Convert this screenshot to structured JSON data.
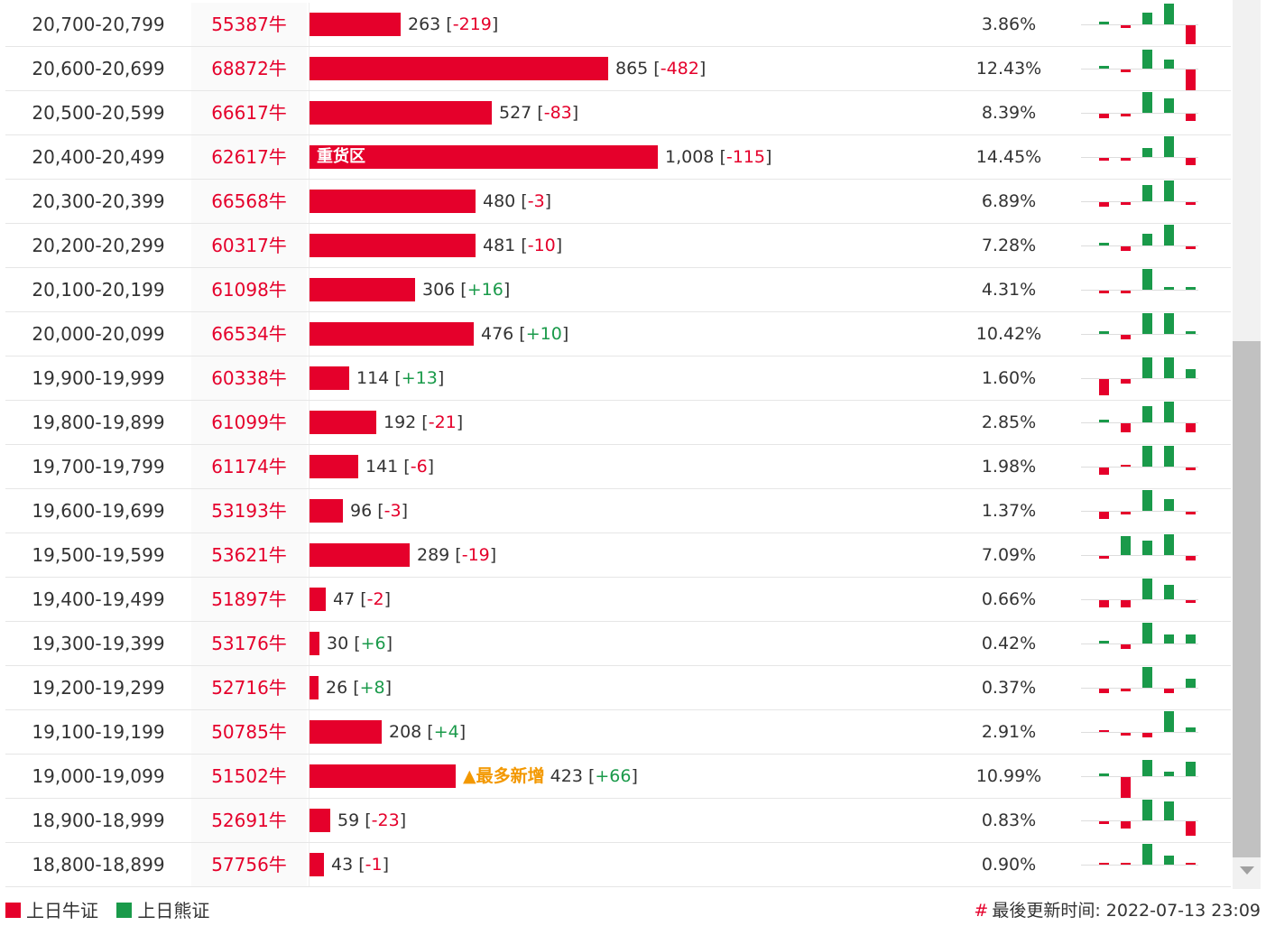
{
  "rows": [
    {
      "range": "20,700-20,799",
      "code": "55387牛",
      "count": "263",
      "count_num": 263,
      "change": "-219",
      "pct": "3.86%",
      "spark": [
        {
          "v": 1,
          "c": "green"
        },
        {
          "v": -1,
          "c": "red"
        },
        {
          "v": 5,
          "c": "green"
        },
        {
          "v": 9,
          "c": "green"
        },
        {
          "v": -8,
          "c": "red"
        }
      ]
    },
    {
      "range": "20,600-20,699",
      "code": "68872牛",
      "count": "865",
      "count_num": 865,
      "change": "-482",
      "pct": "12.43%",
      "spark": [
        {
          "v": 1,
          "c": "green"
        },
        {
          "v": -1,
          "c": "red"
        },
        {
          "v": 8,
          "c": "green"
        },
        {
          "v": 4,
          "c": "green"
        },
        {
          "v": -9,
          "c": "red"
        }
      ]
    },
    {
      "range": "20,500-20,599",
      "code": "66617牛",
      "count": "527",
      "count_num": 527,
      "change": "-83",
      "pct": "8.39%",
      "spark": [
        {
          "v": -2,
          "c": "red"
        },
        {
          "v": -1,
          "c": "red"
        },
        {
          "v": 9,
          "c": "green"
        },
        {
          "v": 6,
          "c": "green"
        },
        {
          "v": -3,
          "c": "red"
        }
      ]
    },
    {
      "range": "20,400-20,499",
      "code": "62617牛",
      "count": "1,008",
      "count_num": 1008,
      "change": "-115",
      "pct": "14.45%",
      "label": "重货区",
      "spark": [
        {
          "v": -1,
          "c": "red"
        },
        {
          "v": -1,
          "c": "red"
        },
        {
          "v": 4,
          "c": "green"
        },
        {
          "v": 9,
          "c": "green"
        },
        {
          "v": -3,
          "c": "red"
        }
      ]
    },
    {
      "range": "20,300-20,399",
      "code": "66568牛",
      "count": "480",
      "count_num": 480,
      "change": "-3",
      "pct": "6.89%",
      "spark": [
        {
          "v": -2,
          "c": "red"
        },
        {
          "v": -1,
          "c": "red"
        },
        {
          "v": 7,
          "c": "green"
        },
        {
          "v": 9,
          "c": "green"
        },
        {
          "v": -1,
          "c": "red"
        }
      ]
    },
    {
      "range": "20,200-20,299",
      "code": "60317牛",
      "count": "481",
      "count_num": 481,
      "change": "-10",
      "pct": "7.28%",
      "spark": [
        {
          "v": 1,
          "c": "green"
        },
        {
          "v": -2,
          "c": "red"
        },
        {
          "v": 5,
          "c": "green"
        },
        {
          "v": 9,
          "c": "green"
        },
        {
          "v": -1,
          "c": "red"
        }
      ]
    },
    {
      "range": "20,100-20,199",
      "code": "61098牛",
      "count": "306",
      "count_num": 306,
      "change": "+16",
      "pct": "4.31%",
      "spark": [
        {
          "v": -1,
          "c": "red"
        },
        {
          "v": -1,
          "c": "red"
        },
        {
          "v": 9,
          "c": "green"
        },
        {
          "v": 1,
          "c": "green"
        },
        {
          "v": 1,
          "c": "green"
        }
      ]
    },
    {
      "range": "20,000-20,099",
      "code": "66534牛",
      "count": "476",
      "count_num": 476,
      "change": "+10",
      "pct": "10.42%",
      "spark": [
        {
          "v": 1,
          "c": "green"
        },
        {
          "v": -2,
          "c": "red"
        },
        {
          "v": 9,
          "c": "green"
        },
        {
          "v": 9,
          "c": "green"
        },
        {
          "v": 1,
          "c": "green"
        }
      ]
    },
    {
      "range": "19,900-19,999",
      "code": "60338牛",
      "count": "114",
      "count_num": 114,
      "change": "+13",
      "pct": "1.60%",
      "spark": [
        {
          "v": -7,
          "c": "red"
        },
        {
          "v": -2,
          "c": "red"
        },
        {
          "v": 9,
          "c": "green"
        },
        {
          "v": 9,
          "c": "green"
        },
        {
          "v": 4,
          "c": "green"
        }
      ]
    },
    {
      "range": "19,800-19,899",
      "code": "61099牛",
      "count": "192",
      "count_num": 192,
      "change": "-21",
      "pct": "2.85%",
      "spark": [
        {
          "v": 1,
          "c": "green"
        },
        {
          "v": -4,
          "c": "red"
        },
        {
          "v": 7,
          "c": "green"
        },
        {
          "v": 9,
          "c": "green"
        },
        {
          "v": -4,
          "c": "red"
        }
      ]
    },
    {
      "range": "19,700-19,799",
      "code": "61174牛",
      "count": "141",
      "count_num": 141,
      "change": "-6",
      "pct": "1.98%",
      "spark": [
        {
          "v": -3,
          "c": "red"
        },
        {
          "v": 0,
          "c": "red"
        },
        {
          "v": 9,
          "c": "green"
        },
        {
          "v": 9,
          "c": "green"
        },
        {
          "v": -1,
          "c": "red"
        }
      ]
    },
    {
      "range": "19,600-19,699",
      "code": "53193牛",
      "count": "96",
      "count_num": 96,
      "change": "-3",
      "pct": "1.37%",
      "spark": [
        {
          "v": -3,
          "c": "red"
        },
        {
          "v": -1,
          "c": "red"
        },
        {
          "v": 9,
          "c": "green"
        },
        {
          "v": 5,
          "c": "green"
        },
        {
          "v": -1,
          "c": "red"
        }
      ]
    },
    {
      "range": "19,500-19,599",
      "code": "53621牛",
      "count": "289",
      "count_num": 289,
      "change": "-19",
      "pct": "7.09%",
      "spark": [
        {
          "v": -1,
          "c": "red"
        },
        {
          "v": 8,
          "c": "green"
        },
        {
          "v": 6,
          "c": "green"
        },
        {
          "v": 9,
          "c": "green"
        },
        {
          "v": -2,
          "c": "red"
        }
      ]
    },
    {
      "range": "19,400-19,499",
      "code": "51897牛",
      "count": "47",
      "count_num": 47,
      "change": "-2",
      "pct": "0.66%",
      "spark": [
        {
          "v": -3,
          "c": "red"
        },
        {
          "v": -3,
          "c": "red"
        },
        {
          "v": 9,
          "c": "green"
        },
        {
          "v": 6,
          "c": "green"
        },
        {
          "v": -1,
          "c": "red"
        }
      ]
    },
    {
      "range": "19,300-19,399",
      "code": "53176牛",
      "count": "30",
      "count_num": 30,
      "change": "+6",
      "pct": "0.42%",
      "spark": [
        {
          "v": 1,
          "c": "green"
        },
        {
          "v": -2,
          "c": "red"
        },
        {
          "v": 9,
          "c": "green"
        },
        {
          "v": 4,
          "c": "green"
        },
        {
          "v": 4,
          "c": "green"
        }
      ]
    },
    {
      "range": "19,200-19,299",
      "code": "52716牛",
      "count": "26",
      "count_num": 26,
      "change": "+8",
      "pct": "0.37%",
      "spark": [
        {
          "v": -2,
          "c": "red"
        },
        {
          "v": -1,
          "c": "red"
        },
        {
          "v": 9,
          "c": "green"
        },
        {
          "v": -2,
          "c": "red"
        },
        {
          "v": 4,
          "c": "green"
        }
      ]
    },
    {
      "range": "19,100-19,199",
      "code": "50785牛",
      "count": "208",
      "count_num": 208,
      "change": "+4",
      "pct": "2.91%",
      "spark": [
        {
          "v": 0,
          "c": "red"
        },
        {
          "v": -1,
          "c": "red"
        },
        {
          "v": -2,
          "c": "red"
        },
        {
          "v": 9,
          "c": "green"
        },
        {
          "v": 2,
          "c": "green"
        }
      ]
    },
    {
      "range": "19,000-19,099",
      "code": "51502牛",
      "count": "423",
      "count_num": 423,
      "change": "+66",
      "pct": "10.99%",
      "badge": "▲最多新增",
      "spark": [
        {
          "v": 1,
          "c": "green"
        },
        {
          "v": -9,
          "c": "red"
        },
        {
          "v": 7,
          "c": "green"
        },
        {
          "v": 2,
          "c": "green"
        },
        {
          "v": 6,
          "c": "green"
        }
      ]
    },
    {
      "range": "18,900-18,999",
      "code": "52691牛",
      "count": "59",
      "count_num": 59,
      "change": "-23",
      "pct": "0.83%",
      "spark": [
        {
          "v": -1,
          "c": "red"
        },
        {
          "v": -3,
          "c": "red"
        },
        {
          "v": 9,
          "c": "green"
        },
        {
          "v": 8,
          "c": "green"
        },
        {
          "v": -6,
          "c": "red"
        }
      ]
    },
    {
      "range": "18,800-18,899",
      "code": "57756牛",
      "count": "43",
      "count_num": 43,
      "change": "-1",
      "pct": "0.90%",
      "spark": [
        {
          "v": 0,
          "c": "red"
        },
        {
          "v": 0,
          "c": "red"
        },
        {
          "v": 9,
          "c": "green"
        },
        {
          "v": 4,
          "c": "green"
        },
        {
          "v": 0,
          "c": "red"
        }
      ]
    }
  ],
  "legend": {
    "bull": "上日牛证",
    "bear": "上日熊证"
  },
  "footer": {
    "hash": "#",
    "updated": "最後更新时间: 2022-07-13 23:09"
  },
  "colors": {
    "bull": "#e5002b",
    "bear": "#1a9a4a",
    "badge": "#f39800"
  }
}
